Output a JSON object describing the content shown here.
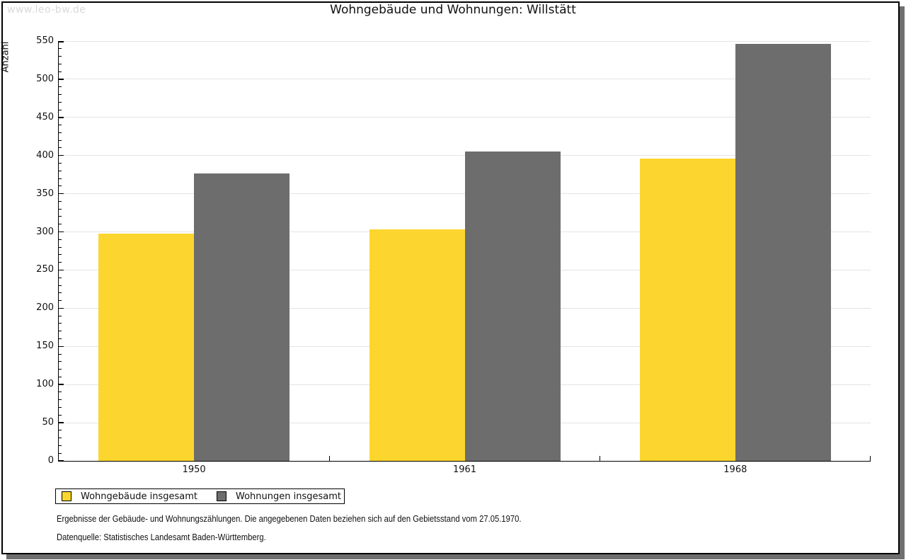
{
  "watermark": "www.leo-bw.de",
  "title": "Wohngebäude und Wohnungen: Willstätt",
  "chart_data": {
    "type": "bar",
    "title": "Wohngebäude und Wohnungen: Willstätt",
    "xlabel": "",
    "ylabel": "Anzahl",
    "categories": [
      "1950",
      "1961",
      "1968"
    ],
    "series": [
      {
        "name": "Wohngebäude insgesamt",
        "color": "#fcd62e",
        "values": [
          298,
          303,
          396
        ]
      },
      {
        "name": "Wohnungen insgesamt",
        "color": "#6d6d6d",
        "values": [
          377,
          405,
          546
        ]
      }
    ],
    "ylim": [
      0,
      550
    ],
    "yticks": [
      0,
      50,
      100,
      150,
      200,
      250,
      300,
      350,
      400,
      450,
      500,
      550
    ],
    "minor_tick_step": 10,
    "grid": true,
    "legend_position": "bottom-left"
  },
  "footer": {
    "line1": "Ergebnisse der Gebäude- und Wohnungszählungen. Die angegebenen Daten beziehen sich auf den Gebietsstand vom 27.05.1970.",
    "line2": "Datenquelle: Statistisches Landesamt Baden-Württemberg."
  }
}
